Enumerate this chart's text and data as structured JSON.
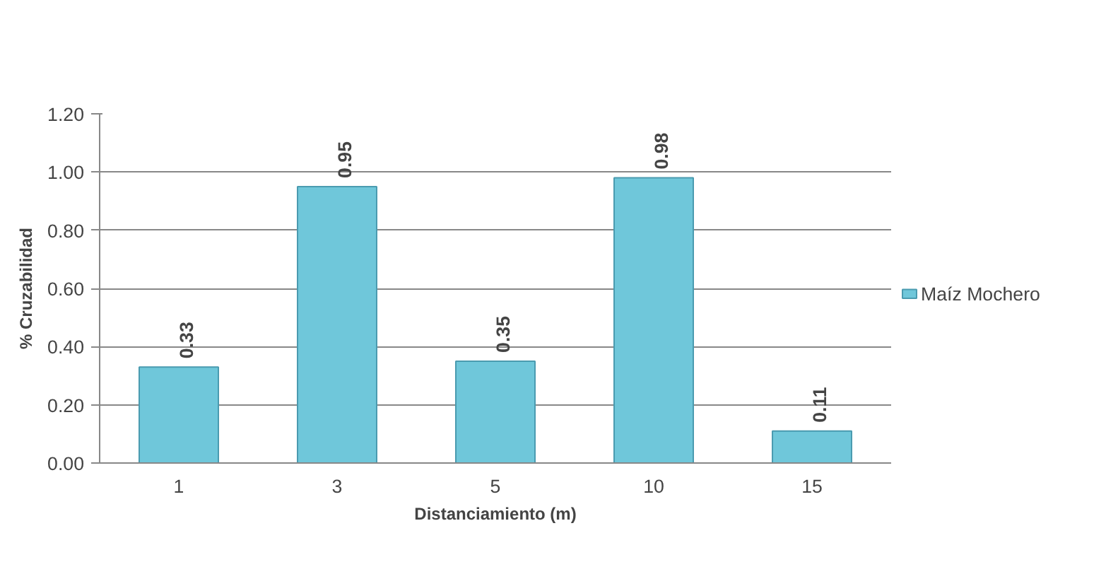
{
  "chart_data": {
    "type": "bar",
    "xlabel": "Distanciamiento (m)",
    "ylabel": "% Cruzabilidad",
    "categories": [
      "1",
      "3",
      "5",
      "10",
      "15"
    ],
    "series": [
      {
        "name": "Maíz Mochero",
        "color": "#6fc7da",
        "values": [
          0.33,
          0.95,
          0.35,
          0.98,
          0.11
        ]
      }
    ],
    "ylim": [
      0,
      1.2
    ],
    "yticks": [
      {
        "value": 0,
        "label": "0.00"
      },
      {
        "value": 0.2,
        "label": "0.20"
      },
      {
        "value": 0.4,
        "label": "0.40"
      },
      {
        "value": 0.6,
        "label": "0.60"
      },
      {
        "value": 0.8,
        "label": "0.80"
      },
      {
        "value": 1.0,
        "label": "1.00"
      },
      {
        "value": 1.2,
        "label": "1.20"
      }
    ],
    "grid": "y",
    "legend": "right",
    "data_labels": true
  }
}
